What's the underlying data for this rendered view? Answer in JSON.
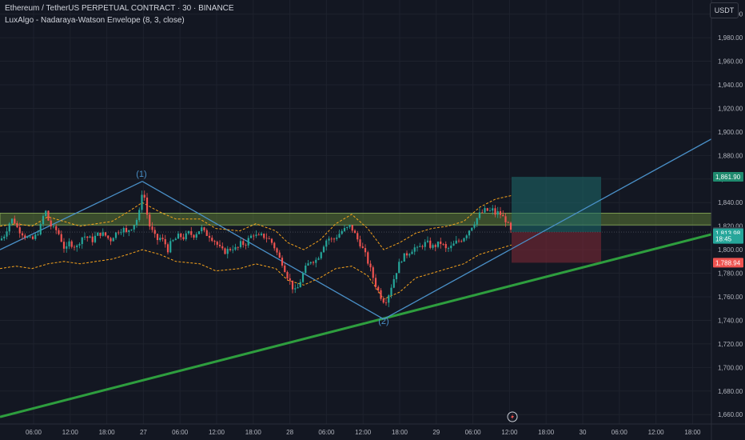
{
  "header": {
    "symbol": "Ethereum / TetherUS PERPETUAL CONTRACT · 30 · BINANCE",
    "indicator": "LuxAlgo - Nadaraya-Watson Envelope (8, 3, close)",
    "currency_button": "USDT"
  },
  "colors": {
    "background": "#131722",
    "bull": "#26a69a",
    "bear": "#ef5350",
    "envelope": "#f7a31c",
    "pattern_line": "#4a90c8",
    "trend_line": "#2e9e3e",
    "zone": "#6b8e3a",
    "target_zone": "#1e6b6b",
    "stop_zone": "#7a2836"
  },
  "chart_data": {
    "type": "candlestick",
    "y_axis": {
      "ylim": [
        1652,
        2012
      ],
      "ticks": [
        2000,
        1980,
        1960,
        1940,
        1920,
        1900,
        1880,
        1860,
        1840,
        1820,
        1800,
        1780,
        1760,
        1740,
        1720,
        1700,
        1680,
        1660
      ],
      "tick_labels": [
        "2,000.00",
        "1,980.00",
        "1,960.00",
        "1,940.00",
        "1,920.00",
        "1,900.00",
        "1,880.00",
        "1,860.00",
        "1,840.00",
        "1,820.00",
        "1,800.00",
        "1,780.00",
        "1,760.00",
        "1,740.00",
        "1,720.00",
        "1,700.00",
        "1,680.00",
        "1,660.00"
      ]
    },
    "x_axis": {
      "tick_labels": [
        "06:00",
        "12:00",
        "18:00",
        "27",
        "06:00",
        "12:00",
        "18:00",
        "28",
        "06:00",
        "12:00",
        "18:00",
        "29",
        "06:00",
        "12:00",
        "18:00",
        "30",
        "06:00",
        "12:00",
        "18:00"
      ]
    },
    "price_path": [
      [
        0,
        1808
      ],
      [
        5,
        1812
      ],
      [
        10,
        1820
      ],
      [
        14,
        1826
      ],
      [
        18,
        1824
      ],
      [
        22,
        1818
      ],
      [
        28,
        1814
      ],
      [
        34,
        1810
      ],
      [
        40,
        1808
      ],
      [
        45,
        1812
      ],
      [
        50,
        1818
      ],
      [
        54,
        1828
      ],
      [
        56,
        1836
      ],
      [
        58,
        1830
      ],
      [
        62,
        1822
      ],
      [
        66,
        1818
      ],
      [
        72,
        1816
      ],
      [
        78,
        1806
      ],
      [
        82,
        1798
      ],
      [
        86,
        1806
      ],
      [
        92,
        1804
      ],
      [
        96,
        1802
      ],
      [
        100,
        1808
      ],
      [
        104,
        1812
      ],
      [
        110,
        1810
      ],
      [
        116,
        1808
      ],
      [
        120,
        1812
      ],
      [
        126,
        1814
      ],
      [
        132,
        1812
      ],
      [
        138,
        1808
      ],
      [
        142,
        1812
      ],
      [
        148,
        1816
      ],
      [
        154,
        1818
      ],
      [
        158,
        1814
      ],
      [
        162,
        1818
      ],
      [
        166,
        1820
      ],
      [
        170,
        1824
      ],
      [
        174,
        1830
      ],
      [
        176,
        1844
      ],
      [
        178,
        1850
      ],
      [
        180,
        1848
      ],
      [
        182,
        1838
      ],
      [
        186,
        1822
      ],
      [
        190,
        1816
      ],
      [
        196,
        1808
      ],
      [
        200,
        1810
      ],
      [
        206,
        1806
      ],
      [
        210,
        1800
      ],
      [
        214,
        1806
      ],
      [
        218,
        1808
      ],
      [
        224,
        1812
      ],
      [
        230,
        1810
      ],
      [
        236,
        1814
      ],
      [
        242,
        1812
      ],
      [
        248,
        1816
      ],
      [
        252,
        1818
      ],
      [
        256,
        1814
      ],
      [
        262,
        1812
      ],
      [
        268,
        1808
      ],
      [
        272,
        1804
      ],
      [
        276,
        1800
      ],
      [
        280,
        1798
      ],
      [
        286,
        1800
      ],
      [
        292,
        1802
      ],
      [
        296,
        1800
      ],
      [
        302,
        1806
      ],
      [
        306,
        1804
      ],
      [
        312,
        1810
      ],
      [
        318,
        1814
      ],
      [
        322,
        1810
      ],
      [
        328,
        1812
      ],
      [
        334,
        1810
      ],
      [
        338,
        1808
      ],
      [
        342,
        1804
      ],
      [
        346,
        1798
      ],
      [
        350,
        1792
      ],
      [
        354,
        1788
      ],
      [
        358,
        1780
      ],
      [
        362,
        1774
      ],
      [
        366,
        1768
      ],
      [
        370,
        1764
      ],
      [
        374,
        1770
      ],
      [
        378,
        1778
      ],
      [
        382,
        1784
      ],
      [
        386,
        1788
      ],
      [
        390,
        1792
      ],
      [
        394,
        1790
      ],
      [
        398,
        1794
      ],
      [
        402,
        1800
      ],
      [
        406,
        1806
      ],
      [
        410,
        1810
      ],
      [
        416,
        1808
      ],
      [
        422,
        1812
      ],
      [
        428,
        1816
      ],
      [
        434,
        1818
      ],
      [
        438,
        1820
      ],
      [
        442,
        1816
      ],
      [
        446,
        1810
      ],
      [
        450,
        1806
      ],
      [
        454,
        1800
      ],
      [
        458,
        1794
      ],
      [
        462,
        1786
      ],
      [
        466,
        1778
      ],
      [
        470,
        1770
      ],
      [
        474,
        1764
      ],
      [
        478,
        1758
      ],
      [
        482,
        1756
      ],
      [
        486,
        1762
      ],
      [
        490,
        1770
      ],
      [
        494,
        1778
      ],
      [
        498,
        1786
      ],
      [
        502,
        1792
      ],
      [
        508,
        1796
      ],
      [
        512,
        1798
      ],
      [
        518,
        1802
      ],
      [
        522,
        1800
      ],
      [
        528,
        1804
      ],
      [
        534,
        1806
      ],
      [
        540,
        1802
      ],
      [
        546,
        1804
      ],
      [
        552,
        1806
      ],
      [
        558,
        1800
      ],
      [
        564,
        1802
      ],
      [
        570,
        1806
      ],
      [
        576,
        1808
      ],
      [
        582,
        1812
      ],
      [
        588,
        1818
      ],
      [
        592,
        1822
      ],
      [
        596,
        1826
      ],
      [
        600,
        1830
      ],
      [
        604,
        1832
      ],
      [
        608,
        1834
      ],
      [
        612,
        1832
      ],
      [
        616,
        1834
      ],
      [
        620,
        1830
      ],
      [
        624,
        1832
      ],
      [
        628,
        1828
      ],
      [
        632,
        1826
      ],
      [
        636,
        1820
      ],
      [
        640,
        1814
      ]
    ],
    "envelope_upper": [
      [
        0,
        1820
      ],
      [
        20,
        1822
      ],
      [
        40,
        1820
      ],
      [
        60,
        1828
      ],
      [
        80,
        1824
      ],
      [
        100,
        1820
      ],
      [
        120,
        1822
      ],
      [
        140,
        1824
      ],
      [
        160,
        1832
      ],
      [
        178,
        1840
      ],
      [
        200,
        1832
      ],
      [
        220,
        1826
      ],
      [
        250,
        1826
      ],
      [
        270,
        1818
      ],
      [
        300,
        1816
      ],
      [
        320,
        1822
      ],
      [
        345,
        1816
      ],
      [
        360,
        1806
      ],
      [
        380,
        1800
      ],
      [
        400,
        1808
      ],
      [
        420,
        1822
      ],
      [
        440,
        1830
      ],
      [
        460,
        1818
      ],
      [
        480,
        1800
      ],
      [
        500,
        1806
      ],
      [
        520,
        1814
      ],
      [
        540,
        1818
      ],
      [
        560,
        1820
      ],
      [
        580,
        1824
      ],
      [
        600,
        1836
      ],
      [
        620,
        1843
      ],
      [
        640,
        1846
      ]
    ],
    "envelope_lower": [
      [
        0,
        1784
      ],
      [
        20,
        1786
      ],
      [
        40,
        1784
      ],
      [
        60,
        1788
      ],
      [
        80,
        1790
      ],
      [
        100,
        1788
      ],
      [
        120,
        1790
      ],
      [
        140,
        1792
      ],
      [
        160,
        1796
      ],
      [
        178,
        1800
      ],
      [
        200,
        1796
      ],
      [
        220,
        1790
      ],
      [
        250,
        1788
      ],
      [
        270,
        1782
      ],
      [
        300,
        1784
      ],
      [
        320,
        1788
      ],
      [
        345,
        1784
      ],
      [
        360,
        1774
      ],
      [
        380,
        1770
      ],
      [
        400,
        1776
      ],
      [
        420,
        1784
      ],
      [
        440,
        1786
      ],
      [
        460,
        1778
      ],
      [
        480,
        1758
      ],
      [
        500,
        1764
      ],
      [
        520,
        1776
      ],
      [
        540,
        1780
      ],
      [
        560,
        1784
      ],
      [
        580,
        1788
      ],
      [
        600,
        1796
      ],
      [
        620,
        1800
      ],
      [
        640,
        1804
      ]
    ],
    "pattern_lines": [
      {
        "from": [
          0,
          1800
        ],
        "to": [
          178,
          1858
        ]
      },
      {
        "from": [
          178,
          1858
        ],
        "to": [
          480,
          1741
        ]
      },
      {
        "from": [
          480,
          1741
        ],
        "to": [
          890,
          1894
        ]
      }
    ],
    "trend_line": {
      "from": [
        0,
        1658
      ],
      "to": [
        890,
        1813
      ]
    },
    "horizontal_zone": {
      "from": 1821,
      "to": 1831
    },
    "reference_line": 1814.99,
    "position_box": {
      "x_start": 640,
      "x_end": 752,
      "target": 1861.9,
      "entry": 1814.99,
      "stop": 1788.94
    },
    "annotations": [
      {
        "text": "(1)",
        "x": 177,
        "y": 1862
      },
      {
        "text": "(2)",
        "x": 480,
        "y": 1737
      }
    ],
    "price_labels": [
      {
        "text": "1,861.90",
        "value": 1861.9,
        "color": "#1f8a6e"
      },
      {
        "text": "1,814.99",
        "value": 1814.99,
        "color": "#363a45"
      },
      {
        "text": "1,813.98",
        "value": 1813.98,
        "color": "#26a69a"
      },
      {
        "text": "18:45",
        "value": 1809.2,
        "color": "#26a69a"
      },
      {
        "text": "1,788.94",
        "value": 1788.94,
        "color": "#ef5350"
      }
    ]
  }
}
